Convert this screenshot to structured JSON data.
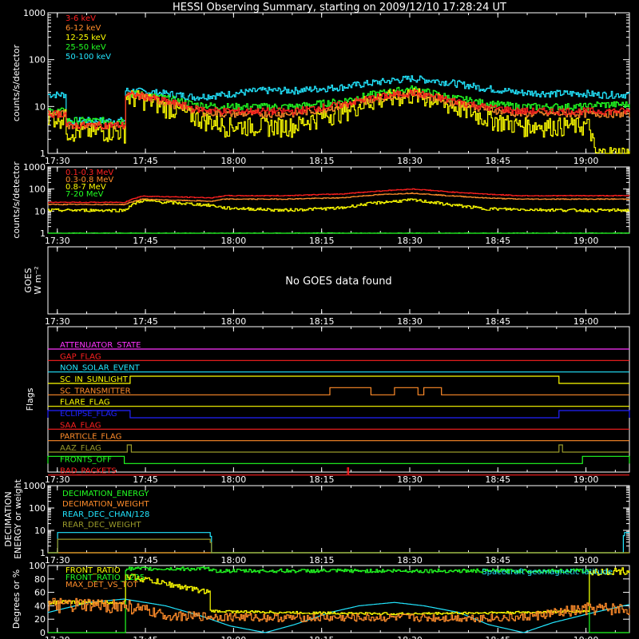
{
  "title": "HESSI Observing Summary, starting on 2009/12/10 17:28:24 UT",
  "colors": {
    "background": "#000000",
    "frame": "#ffffff",
    "red": "#ff2020",
    "orange": "#ff8c2a",
    "yellow": "#ffff00",
    "green": "#22ff22",
    "cyan": "#22e6ff",
    "magenta": "#ff33ff",
    "blue": "#2222ff",
    "olive": "#9a9a2a"
  },
  "time_axis": {
    "start_min": 0,
    "end_min": 99,
    "tick_labels": [
      {
        "t": 1.6,
        "label": "17:30"
      },
      {
        "t": 16.6,
        "label": "17:45"
      },
      {
        "t": 31.6,
        "label": "18:00"
      },
      {
        "t": 46.6,
        "label": "18:15"
      },
      {
        "t": 61.6,
        "label": "18:30"
      },
      {
        "t": 76.6,
        "label": "18:45"
      },
      {
        "t": 91.6,
        "label": "19:00"
      }
    ]
  },
  "chart_data": [
    {
      "type": "line",
      "panel": "low_energy",
      "ylabel": "counts/s/detector",
      "ylim": [
        1,
        1000
      ],
      "yscale": "log",
      "ytick_labels": [
        "1",
        "10",
        "100",
        "1000"
      ],
      "x": [
        0,
        3,
        3.1,
        13,
        13.1,
        16,
        20,
        25,
        30,
        36,
        42,
        50,
        56,
        62,
        68,
        74,
        80,
        86,
        92,
        93,
        99
      ],
      "series": [
        {
          "name": "3-6 keV",
          "color": "red",
          "values": [
            7,
            7,
            4,
            4,
            18,
            17,
            13,
            9,
            8,
            8,
            8,
            11,
            16,
            20,
            14,
            10,
            8,
            8,
            8,
            8,
            8
          ]
        },
        {
          "name": "6-12 keV",
          "color": "orange",
          "values": [
            7,
            7,
            4,
            4,
            17,
            16,
            12,
            8,
            7,
            7,
            7,
            10,
            15,
            19,
            13,
            9,
            7,
            7,
            7,
            7,
            7
          ]
        },
        {
          "name": "12-25 keV",
          "color": "yellow",
          "values": [
            6,
            6,
            3,
            3,
            16,
            15,
            10,
            6,
            4,
            4,
            4,
            8,
            14,
            18,
            11,
            6,
            4,
            4,
            4,
            1,
            1
          ]
        },
        {
          "name": "25-50 keV",
          "color": "green",
          "values": [
            8,
            8,
            5,
            5,
            19,
            18,
            15,
            11,
            10,
            10,
            10,
            13,
            19,
            24,
            16,
            12,
            10,
            10,
            10,
            11,
            11
          ]
        },
        {
          "name": "50-100 keV",
          "color": "cyan",
          "values": [
            18,
            18,
            5,
            5,
            22,
            21,
            19,
            16,
            18,
            22,
            22,
            26,
            33,
            40,
            33,
            25,
            20,
            19,
            19,
            18,
            18
          ]
        }
      ]
    },
    {
      "type": "line",
      "panel": "high_energy",
      "ylabel": "counts/s/detector",
      "ylim": [
        1,
        1000
      ],
      "yscale": "log",
      "ytick_labels": [
        "1",
        "10",
        "100",
        "1000"
      ],
      "x": [
        0,
        3,
        13,
        16,
        20,
        28,
        30,
        40,
        50,
        56,
        62,
        68,
        74,
        80,
        90,
        99
      ],
      "series": [
        {
          "name": "0.1-0.3 MeV",
          "color": "red",
          "values": [
            25,
            25,
            25,
            48,
            45,
            40,
            50,
            50,
            60,
            80,
            100,
            75,
            60,
            50,
            50,
            50
          ]
        },
        {
          "name": "0.3-0.8 MeV",
          "color": "orange",
          "values": [
            20,
            20,
            20,
            35,
            32,
            28,
            35,
            35,
            40,
            55,
            65,
            50,
            40,
            35,
            35,
            35
          ]
        },
        {
          "name": "0.8-7 MeV",
          "color": "yellow",
          "values": [
            11,
            11,
            11,
            30,
            25,
            18,
            14,
            11,
            14,
            24,
            32,
            20,
            13,
            12,
            11,
            11
          ]
        },
        {
          "name": "7-20 MeV",
          "color": "green",
          "values": [
            1,
            1,
            1,
            1,
            1,
            1,
            1,
            1,
            1,
            1,
            1,
            1,
            1,
            1,
            1,
            1
          ]
        }
      ]
    },
    {
      "type": "line",
      "panel": "goes",
      "ylabel_parts": [
        "GOES",
        "W m⁻²"
      ],
      "message": "No GOES data found"
    },
    {
      "type": "line",
      "panel": "flags",
      "ylabel": "Flags",
      "flags": [
        {
          "name": "ATTENUATOR_STATE",
          "color": "magenta",
          "segments": []
        },
        {
          "name": "GAP_FLAG",
          "color": "red",
          "segments": []
        },
        {
          "name": "NON_SOLAR_EVENT",
          "color": "cyan",
          "segments": []
        },
        {
          "name": "SC_IN_SUNLIGHT",
          "color": "yellow",
          "segments": [
            [
              14,
              87
            ]
          ]
        },
        {
          "name": "SC_TRANSMITTER",
          "color": "orange",
          "segments": [
            [
              48,
              55
            ],
            [
              59,
              63
            ],
            [
              64,
              67
            ]
          ]
        },
        {
          "name": "FLARE_FLAG",
          "color": "yellow",
          "segments": []
        },
        {
          "name": "ECLIPSE_FLAG",
          "color": "blue",
          "segments": [
            [
              0,
              14
            ],
            [
              87,
              99
            ]
          ]
        },
        {
          "name": "SAA_FLAG",
          "color": "red",
          "segments": []
        },
        {
          "name": "PARTICLE_FLAG",
          "color": "orange",
          "segments": []
        },
        {
          "name": "AAZ_FLAG",
          "color": "olive",
          "segments": [
            [
              13.5,
              14.2
            ],
            [
              87,
              87.6
            ]
          ]
        },
        {
          "name": "FRONTS_OFF",
          "color": "green",
          "segments": [
            [
              0,
              13
            ],
            [
              91,
              99
            ]
          ]
        },
        {
          "name": "BAD_PACKETS",
          "color": "red",
          "segments": [
            [
              51,
              51.2
            ]
          ]
        }
      ]
    },
    {
      "type": "line",
      "panel": "decimation",
      "ylabel_parts": [
        "DECIMATION",
        "ENERGY or weight"
      ],
      "ylim": [
        1,
        1000
      ],
      "yscale": "log",
      "ytick_labels": [
        "1",
        "10",
        "100",
        "1000"
      ],
      "series": [
        {
          "name": "DECIMATION_ENERGY",
          "color": "green",
          "x": [
            0,
            99
          ],
          "values": [
            1,
            1
          ]
        },
        {
          "name": "DECIMATION_WEIGHT",
          "color": "orange",
          "x": [
            0,
            99
          ],
          "values": [
            1,
            1
          ]
        },
        {
          "name": "REAR_DEC_CHAN/128",
          "color": "cyan",
          "x": [
            0,
            1.5,
            1.6,
            27.6,
            27.7,
            97.9,
            98,
            99
          ],
          "values": [
            1,
            1,
            8,
            8,
            1,
            1,
            8,
            8
          ]
        },
        {
          "name": "REAR_DEC_WEIGHT",
          "color": "olive",
          "x": [
            0,
            1.5,
            1.6,
            27.6,
            27.7,
            99
          ],
          "values": [
            1,
            1,
            4,
            4,
            1,
            1
          ]
        }
      ]
    },
    {
      "type": "line",
      "panel": "ratios",
      "ylabel": "Degrees or %",
      "ylim": [
        0,
        100
      ],
      "ytick_labels": [
        "0",
        "20",
        "40",
        "60",
        "80",
        "100"
      ],
      "annotation": "Spacecraft geomagnetic latitude",
      "series": [
        {
          "name": "FRONT_RATIO",
          "color": "yellow",
          "x": [
            0,
            3,
            13,
            13.1,
            27.5,
            27.6,
            40,
            60,
            80,
            92,
            92.1,
            99
          ],
          "values": [
            45,
            45,
            45,
            85,
            60,
            32,
            30,
            28,
            30,
            32,
            90,
            92
          ]
        },
        {
          "name": "FRONT_RATIO_1225",
          "color": "green",
          "x": [
            0,
            13,
            13.1,
            27.5,
            27.6,
            92,
            92.1,
            99
          ],
          "values": [
            0,
            0,
            95,
            95,
            92,
            92,
            0,
            0
          ]
        },
        {
          "name": "MAX_DET_VS_TOT",
          "color": "orange",
          "x": [
            0,
            13,
            20,
            40,
            60,
            80,
            92,
            99
          ],
          "values": [
            40,
            40,
            25,
            22,
            22,
            22,
            35,
            35
          ]
        },
        {
          "name": "Spacecraft geomagnetic latitude",
          "color": "cyan",
          "x": [
            0,
            7,
            13,
            20,
            26,
            31,
            37,
            42,
            48,
            53,
            59,
            64,
            70,
            75,
            81,
            86,
            92,
            99
          ],
          "values": [
            30,
            45,
            50,
            40,
            25,
            10,
            0,
            12,
            30,
            40,
            45,
            40,
            30,
            12,
            0,
            15,
            28,
            42
          ]
        }
      ]
    }
  ]
}
